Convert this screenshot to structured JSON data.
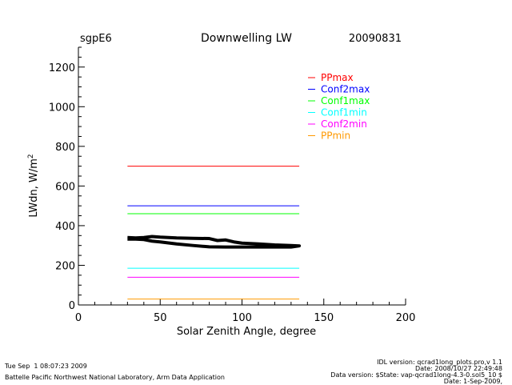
{
  "header": {
    "site": "sgpE6",
    "title": "Downwelling LW",
    "date": "20090831"
  },
  "chart_data": {
    "type": "line",
    "title": "Downwelling LW",
    "xlabel": "Solar Zenith Angle, degree",
    "ylabel": "LWdn, W/m",
    "ylabel_sup": "2",
    "xlim": [
      0,
      200
    ],
    "ylim": [
      0,
      1300
    ],
    "xticks": [
      0,
      50,
      100,
      150,
      200
    ],
    "yticks": [
      0,
      200,
      400,
      600,
      800,
      1000,
      1200
    ],
    "legend_position": "top-right",
    "series": [
      {
        "name": "PPmax",
        "color": "#ff0000",
        "x": [
          30,
          135
        ],
        "y": [
          700,
          700
        ]
      },
      {
        "name": "Conf2max",
        "color": "#0000ff",
        "x": [
          30,
          135
        ],
        "y": [
          500,
          500
        ]
      },
      {
        "name": "Conf1max",
        "color": "#00ff00",
        "x": [
          30,
          135
        ],
        "y": [
          460,
          460
        ]
      },
      {
        "name": "Conf1min",
        "color": "#00ffff",
        "x": [
          30,
          135
        ],
        "y": [
          185,
          185
        ]
      },
      {
        "name": "Conf2min",
        "color": "#ff00ff",
        "x": [
          30,
          135
        ],
        "y": [
          140,
          140
        ]
      },
      {
        "name": "PPmin",
        "color": "#ff9900",
        "x": [
          30,
          135
        ],
        "y": [
          30,
          30
        ]
      },
      {
        "name": "LWdn",
        "color": "#000000",
        "x": [
          30,
          35,
          40,
          45,
          50,
          60,
          70,
          80,
          85,
          90,
          95,
          100,
          110,
          120,
          130,
          135,
          130,
          120,
          110,
          100,
          90,
          80,
          70,
          60,
          50,
          45,
          40,
          35,
          30
        ],
        "y": [
          340,
          338,
          340,
          345,
          342,
          338,
          336,
          335,
          325,
          328,
          318,
          312,
          308,
          303,
          300,
          298,
          292,
          292,
          292,
          292,
          292,
          293,
          300,
          308,
          318,
          322,
          330,
          332,
          332
        ]
      }
    ]
  },
  "footer": {
    "timestamp": "Tue Sep  1 08:07:23 2009",
    "lab": "Battelle Pacific Northwest National Laboratory, Arm Data Application",
    "idl_version": "IDL version: qcrad1long_plots.pro,v 1.1",
    "idl_date": "Date: 2008/10/27 22:49:48",
    "data_version": "Data version: $State: vap-qcrad1long-4.3-0.sol5_10 $",
    "data_date": "Date: 1-Sep-2009,"
  }
}
